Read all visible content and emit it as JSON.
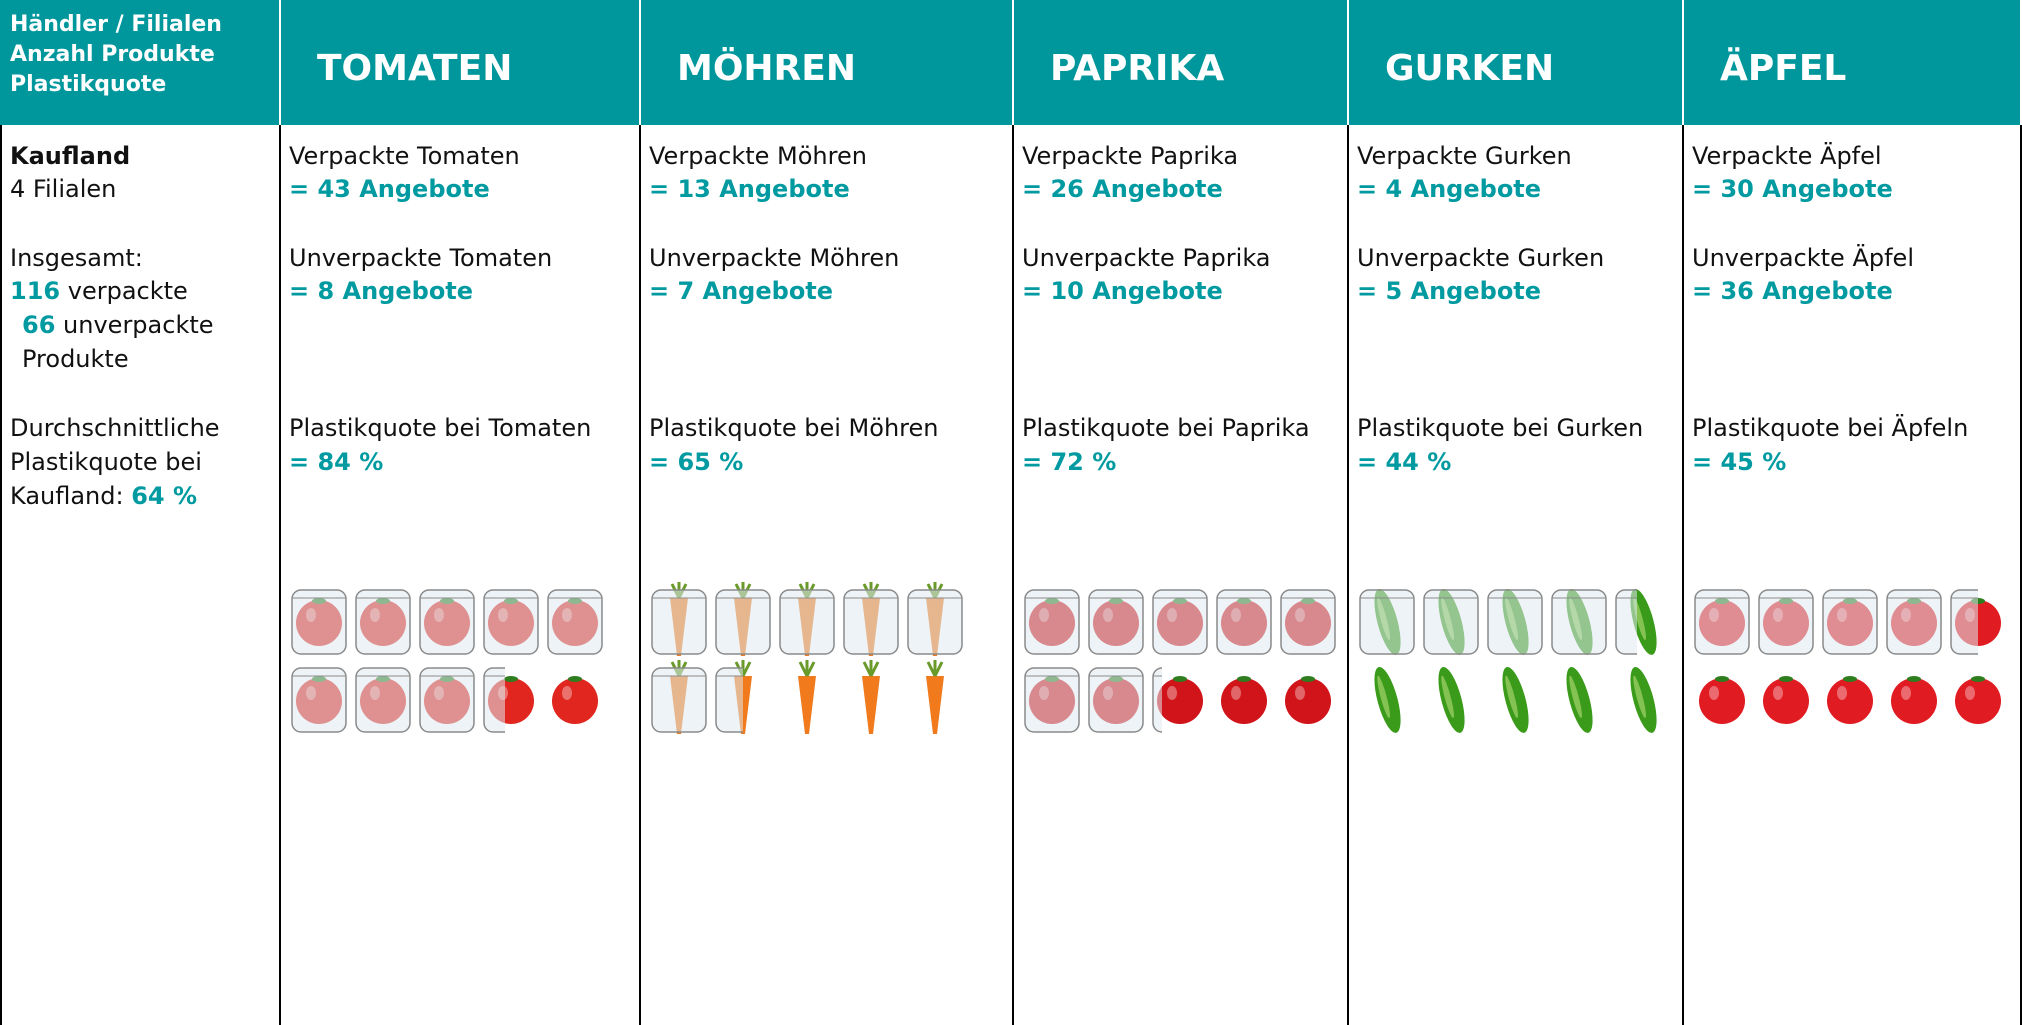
{
  "header": {
    "lines": [
      "Händler / Filialen",
      "Anzahl Produkte",
      "Plastikquote"
    ]
  },
  "retailer": {
    "name": "Kaufland",
    "stores_count": "4",
    "stores_label": "Filialen",
    "total_label": "Insgesamt:",
    "packed_count": "116",
    "packed_label": "verpackte",
    "unpacked_count": "66",
    "unpacked_label": "unverpackte Produkte",
    "avg_label": "Durchschnittliche Plastikquote bei Kaufland:",
    "avg_value": "64 %"
  },
  "products": [
    {
      "title": "TOMATEN",
      "packed_label": "Verpackte Tomaten",
      "packed_count": "= 43 Angebote",
      "unpacked_label": "Unverpackte Tomaten",
      "unpacked_count": "= 8 Angebote",
      "quota_label": "Plastikquote bei Tomaten",
      "quota": {
        "value": 84,
        "label": "= 84 %"
      },
      "color": "#e0261f"
    },
    {
      "title": "MÖHREN",
      "packed_label": "Verpackte Möhren",
      "packed_count": "= 13 Angebote",
      "unpacked_label": "Unverpackte Möhren",
      "unpacked_count": "= 7 Angebote",
      "quota_label": "Plastikquote bei Möhren",
      "quota": {
        "value": 65,
        "label": "= 65 %"
      },
      "color": "#f07a1c"
    },
    {
      "title": "PAPRIKA",
      "packed_label": "Verpackte Paprika",
      "packed_count": "= 26 Angebote",
      "unpacked_label": "Unverpackte Paprika",
      "unpacked_count": "= 10 Angebote",
      "quota_label": "Plastikquote bei Paprika",
      "quota": {
        "value": 72,
        "label": "= 72 %"
      },
      "color": "#d0141a"
    },
    {
      "title": "GURKEN",
      "packed_label": "Verpackte Gurken",
      "packed_count": "= 4 Angebote",
      "unpacked_label": "Unverpackte Gurken",
      "unpacked_count": "= 5 Angebote",
      "quota_label": "Plastikquote bei Gurken",
      "quota": {
        "value": 44,
        "label": "= 44 %"
      },
      "color": "#3a9a1a"
    },
    {
      "title": "ÄPFEL",
      "packed_label": "Verpackte Äpfel",
      "packed_count": "= 30 Angebote",
      "unpacked_label": "Unverpackte Äpfel",
      "unpacked_count": "= 36 Angebote",
      "quota_label": "Plastikquote bei Äpfeln",
      "quota": {
        "value": 45,
        "label": "= 45 %"
      },
      "color": "#e01b22"
    }
  ]
}
